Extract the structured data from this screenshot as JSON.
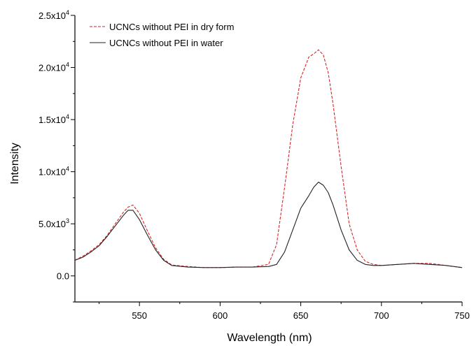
{
  "chart_data": {
    "type": "line",
    "title": "",
    "xlabel": "Wavelength (nm)",
    "ylabel": "Intensity",
    "xlim": [
      510,
      750
    ],
    "ylim": [
      -2500,
      25000
    ],
    "x_ticks": [
      550,
      600,
      650,
      700,
      750
    ],
    "x_tick_labels": [
      "550",
      "600",
      "650",
      "700",
      "750"
    ],
    "y_ticks": [
      0,
      5000,
      10000,
      15000,
      20000,
      25000
    ],
    "y_tick_labels": [
      {
        "mantissa": "0.0",
        "exp": ""
      },
      {
        "mantissa": "5.0x10",
        "exp": "3"
      },
      {
        "mantissa": "1.0x10",
        "exp": "4"
      },
      {
        "mantissa": "1.5x10",
        "exp": "4"
      },
      {
        "mantissa": "2.0x10",
        "exp": "4"
      },
      {
        "mantissa": "2.5x10",
        "exp": "4"
      }
    ],
    "grid": false,
    "legend_position": "top-left",
    "series": [
      {
        "name": "UCNCs without PEI in dry form",
        "color": "#d62728",
        "dash": "dashed",
        "x": [
          510,
          515,
          520,
          525,
          530,
          535,
          540,
          543,
          546,
          550,
          555,
          560,
          565,
          570,
          580,
          590,
          600,
          610,
          620,
          630,
          635,
          640,
          645,
          650,
          655,
          658,
          661,
          664,
          667,
          670,
          675,
          680,
          685,
          690,
          695,
          700,
          710,
          720,
          730,
          740,
          750
        ],
        "y": [
          1500,
          1900,
          2400,
          3000,
          3900,
          5000,
          6100,
          6600,
          6800,
          6000,
          4300,
          2700,
          1600,
          1050,
          900,
          800,
          800,
          850,
          850,
          1100,
          3000,
          8500,
          14500,
          19000,
          21000,
          21300,
          21700,
          21200,
          19500,
          16500,
          10500,
          5000,
          2500,
          1400,
          1100,
          1000,
          1100,
          1200,
          1200,
          1000,
          800
        ]
      },
      {
        "name": "UCNCs without PEI in water",
        "color": "#222222",
        "dash": "solid",
        "x": [
          510,
          515,
          520,
          525,
          530,
          535,
          540,
          543,
          546,
          550,
          555,
          560,
          565,
          570,
          580,
          590,
          600,
          610,
          620,
          630,
          635,
          640,
          645,
          650,
          655,
          658,
          661,
          664,
          667,
          670,
          675,
          680,
          685,
          690,
          695,
          700,
          710,
          720,
          730,
          740,
          750
        ],
        "y": [
          1500,
          1800,
          2300,
          2900,
          3800,
          4800,
          5800,
          6300,
          6300,
          5400,
          3900,
          2500,
          1500,
          1000,
          850,
          800,
          800,
          850,
          850,
          900,
          1100,
          2300,
          4400,
          6500,
          7700,
          8500,
          9000,
          8700,
          8000,
          6800,
          4400,
          2500,
          1500,
          1100,
          1000,
          1000,
          1100,
          1200,
          1100,
          1000,
          800
        ]
      }
    ]
  }
}
